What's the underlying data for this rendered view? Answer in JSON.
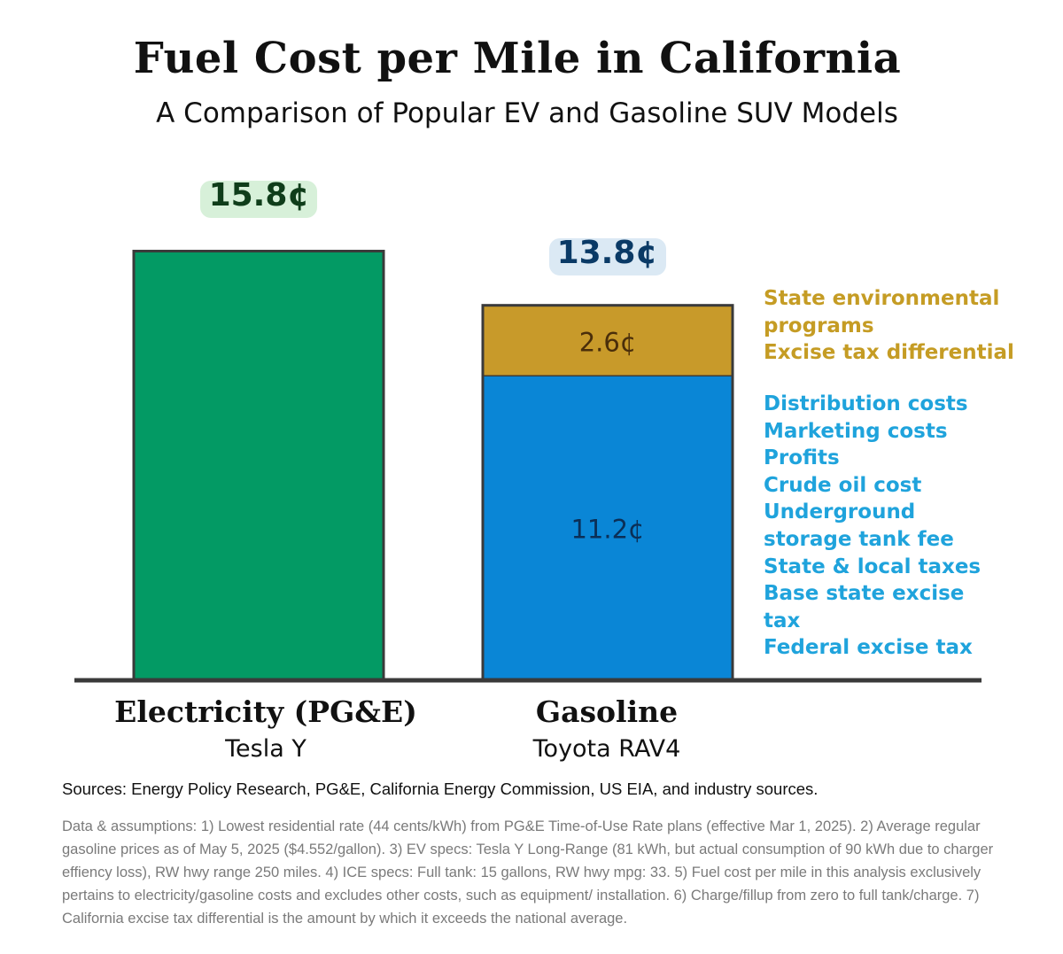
{
  "chart_data": {
    "type": "bar",
    "stacked": true,
    "title": "Fuel Cost per Mile in California",
    "subtitle": "A Comparison of Popular EV and Gasoline SUV Models",
    "unit": "¢",
    "categories": [
      {
        "label": "Electricity (PG&E)",
        "sublabel": "Tesla Y",
        "total": 15.8,
        "total_label": "15.8¢"
      },
      {
        "label": "Gasoline",
        "sublabel": "Toyota RAV4",
        "total": 13.8,
        "total_label": "13.8¢"
      }
    ],
    "series": [
      {
        "values": [
          15.8,
          0
        ],
        "color": "#039a64"
      },
      {
        "values": [
          0,
          11.2
        ],
        "color": "#0a86d6",
        "value_label": "11.2¢"
      },
      {
        "values": [
          0,
          2.6
        ],
        "color": "#c89a2a",
        "value_label": "2.6¢"
      }
    ],
    "ylim": [
      0,
      16.6
    ],
    "legend": {
      "env_color": "#c59c24",
      "env_items": [
        "State environmental programs",
        "Excise tax differential"
      ],
      "base_color": "#1fa3dc",
      "base_items": [
        "Distribution costs",
        "Marketing costs",
        "Profits",
        "Crude oil cost",
        "Underground storage tank fee",
        "State & local taxes",
        "Base state excise tax",
        "Federal excise tax"
      ]
    },
    "colors": {
      "ev_bar": "#039a64",
      "gas_base": "#0a86d6",
      "gas_top": "#c89a2a",
      "ev_label": "#0f3d1a",
      "gas_label": "#0a3a66",
      "bar_outline": "#3a3a3a"
    }
  },
  "footer": {
    "sources": "Sources: Energy Policy Research, PG&E, California Energy Commission, US EIA, and industry sources.",
    "assumptions": "Data & assumptions: 1) Lowest residential rate (44 cents/kWh) from PG&E Time-of-Use Rate plans (effective Mar 1, 2025). 2) Average regular gasoline prices as of May 5, 2025 ($4.552/gallon). 3) EV specs: Tesla Y Long-Range (81 kWh, but actual consumption of 90 kWh due to charger effiency loss), RW hwy range 250 miles. 4) ICE specs: Full tank: 15 gallons, RW hwy mpg: 33. 5) Fuel cost per mile in this analysis exclusively pertains to electricity/gasoline costs and excludes other costs, such as equipment/ installation. 6) Charge/fillup from zero to full tank/charge. 7) California excise tax differential is the amount by which it exceeds the national average."
  }
}
